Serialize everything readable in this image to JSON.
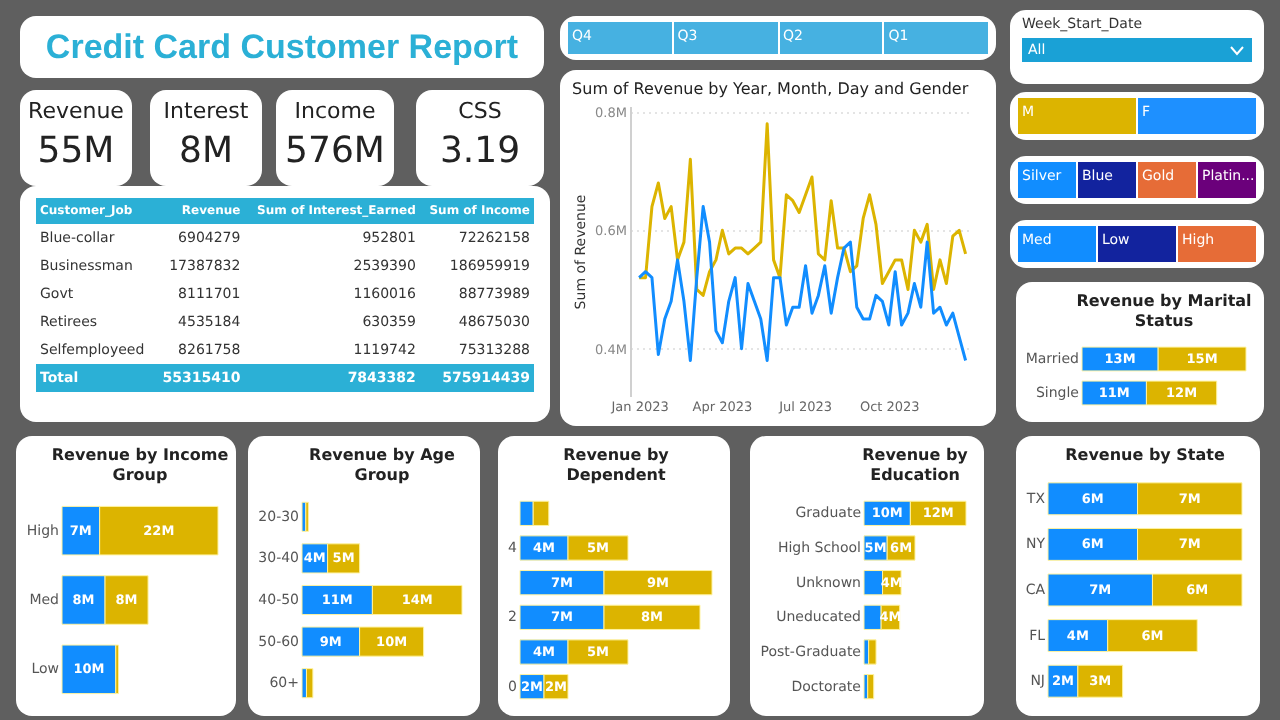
{
  "chart_data": [
    {
      "type": "other",
      "title": "Credit  Card  Customer Report"
    },
    {
      "type": "other",
      "title": "Revenue",
      "annotations": [
        "55M"
      ]
    },
    {
      "type": "other",
      "title": "Interest",
      "annotations": [
        "8M"
      ]
    },
    {
      "type": "other",
      "title": "Income",
      "annotations": [
        "576M"
      ]
    },
    {
      "type": "other",
      "title": "CSS",
      "annotations": [
        "3.19"
      ]
    },
    {
      "type": "other",
      "data_labels": true,
      "xlabel": "Customer_Job",
      "categories": [
        "Blue-collar",
        "Businessman",
        "Govt",
        "Retirees",
        "Selfemployeed"
      ],
      "series": [
        {
          "name": "Revenue",
          "values": [
            6904279,
            17387832,
            8111701,
            4535184,
            8261758
          ]
        },
        {
          "name": "Sum of Interest_Earned",
          "values": [
            952801,
            2539390,
            1160016,
            630359,
            1119742
          ]
        },
        {
          "name": "Sum of Income",
          "values": [
            72262158,
            186959919,
            88773989,
            48675030,
            75313288
          ]
        }
      ],
      "annotations": [
        "Total"
      ],
      "totals": [
        "55315410",
        "7843382",
        "575914439"
      ]
    },
    {
      "type": "other",
      "categories": [
        "Q4",
        "Q3",
        "Q2",
        "Q1"
      ],
      "colors": [
        "#46b1e1",
        "#46b1e1",
        "#46b1e1",
        "#46b1e1"
      ]
    },
    {
      "type": "line",
      "title": "Sum of Revenue by Year, Month, Day and Gender",
      "ylabel": "Sum of Revenue",
      "grid": "y",
      "x": [
        "2023-01-01",
        "2023-01-08",
        "2023-01-15",
        "2023-01-22",
        "2023-01-29",
        "2023-02-05",
        "2023-02-12",
        "2023-02-19",
        "2023-02-26",
        "2023-03-05",
        "2023-03-12",
        "2023-03-19",
        "2023-03-26",
        "2023-04-02",
        "2023-04-09",
        "2023-04-16",
        "2023-04-23",
        "2023-04-30",
        "2023-05-07",
        "2023-05-14",
        "2023-05-21",
        "2023-05-28",
        "2023-06-04",
        "2023-06-11",
        "2023-06-18",
        "2023-06-25",
        "2023-07-02",
        "2023-07-09",
        "2023-07-16",
        "2023-07-23",
        "2023-07-30",
        "2023-08-06",
        "2023-08-13",
        "2023-08-20",
        "2023-08-27",
        "2023-09-03",
        "2023-09-10",
        "2023-09-17",
        "2023-09-24",
        "2023-10-01",
        "2023-10-08",
        "2023-10-15",
        "2023-10-22",
        "2023-10-29",
        "2023-11-05",
        "2023-11-12",
        "2023-11-19",
        "2023-11-26",
        "2023-12-03",
        "2023-12-10",
        "2023-12-17",
        "2023-12-24"
      ],
      "xlim": [
        "2022-12-22",
        "2023-12-31"
      ],
      "xticks": [
        {
          "value": "2023-01-01",
          "label": "Jan 2023"
        },
        {
          "value": "2023-04-01",
          "label": "Apr 2023"
        },
        {
          "value": "2023-07-01",
          "label": "Jul 2023"
        },
        {
          "value": "2023-10-01",
          "label": "Oct 2023"
        }
      ],
      "ylim": [
        320000,
        810000
      ],
      "yticks": [
        {
          "value": 400000,
          "label": "0.4M"
        },
        {
          "value": 600000,
          "label": "0.6M"
        },
        {
          "value": 800000,
          "label": "0.8M"
        }
      ],
      "series": [
        {
          "color": "#dcb400",
          "values": [
            520000,
            520000,
            640000,
            680000,
            620000,
            640000,
            550000,
            580000,
            720000,
            500000,
            490000,
            530000,
            550000,
            600000,
            560000,
            570000,
            570000,
            560000,
            570000,
            580000,
            780000,
            550000,
            520000,
            660000,
            650000,
            630000,
            660000,
            690000,
            560000,
            550000,
            650000,
            570000,
            570000,
            530000,
            540000,
            620000,
            660000,
            610000,
            510000,
            530000,
            550000,
            550000,
            500000,
            600000,
            580000,
            610000,
            500000,
            550000,
            510000,
            590000,
            600000,
            560000
          ]
        },
        {
          "color": "#118dff",
          "values": [
            520000,
            530000,
            520000,
            390000,
            450000,
            480000,
            550000,
            480000,
            380000,
            520000,
            640000,
            580000,
            430000,
            410000,
            480000,
            520000,
            400000,
            510000,
            480000,
            450000,
            380000,
            520000,
            520000,
            440000,
            470000,
            470000,
            540000,
            460000,
            490000,
            540000,
            460000,
            520000,
            570000,
            580000,
            470000,
            450000,
            450000,
            490000,
            480000,
            440000,
            530000,
            440000,
            460000,
            510000,
            470000,
            580000,
            460000,
            470000,
            440000,
            460000,
            420000,
            380000
          ]
        }
      ]
    },
    {
      "type": "other",
      "title": "Week_Start_Date",
      "annotations": [
        "All"
      ]
    },
    {
      "type": "other",
      "categories": [
        "M",
        "F"
      ],
      "colors": [
        "#dcb400",
        "#1e90ff"
      ]
    },
    {
      "type": "other",
      "categories": [
        "Silver",
        "Blue",
        "Gold",
        "Platin..."
      ],
      "colors": [
        "#118dff",
        "#12239e",
        "#e66c37",
        "#6b007b"
      ]
    },
    {
      "type": "other",
      "categories": [
        "Med",
        "Low",
        "High"
      ],
      "colors": [
        "#118dff",
        "#12239e",
        "#e66c37"
      ]
    },
    {
      "type": "bar",
      "orientation": "horizontal",
      "stacked": true,
      "tick_labels": "y",
      "title": "Revenue by Marital Status",
      "categories": [
        "Married",
        "Single"
      ],
      "series": [
        {
          "color": "#118dff",
          "values": [
            13,
            11
          ],
          "value_labels": [
            "13M",
            "11M"
          ]
        },
        {
          "color": "#dcb400",
          "values": [
            15,
            12
          ],
          "value_labels": [
            "15M",
            "12M"
          ]
        }
      ]
    },
    {
      "type": "bar",
      "orientation": "horizontal",
      "stacked": true,
      "tick_labels": "y",
      "title": "Revenue by Income Group",
      "categories": [
        "High",
        "Med",
        "Low"
      ],
      "series": [
        {
          "color": "#118dff",
          "values": [
            7,
            8,
            10
          ],
          "value_labels": [
            "7M",
            "8M",
            "10M"
          ]
        },
        {
          "color": "#dcb400",
          "values": [
            22,
            8,
            0.5
          ],
          "value_labels": [
            "22M",
            "8M",
            null
          ]
        }
      ]
    },
    {
      "type": "bar",
      "orientation": "horizontal",
      "stacked": true,
      "tick_labels": "y",
      "title": "Revenue by Age Group",
      "categories": [
        "20-30",
        "30-40",
        "40-50",
        "50-60",
        "60+"
      ],
      "series": [
        {
          "color": "#118dff",
          "values": [
            0.6,
            4,
            11,
            9,
            0.7
          ],
          "value_labels": [
            null,
            "4M",
            "11M",
            "9M",
            null
          ]
        },
        {
          "color": "#dcb400",
          "values": [
            0.4,
            5,
            14,
            10,
            1
          ],
          "value_labels": [
            null,
            "5M",
            "14M",
            "10M",
            null
          ]
        }
      ]
    },
    {
      "type": "bar",
      "orientation": "horizontal",
      "stacked": true,
      "tick_labels": "y",
      "title": "Revenue by Dependent",
      "categories": [
        null,
        "4",
        null,
        "2",
        null,
        "0"
      ],
      "series": [
        {
          "color": "#118dff",
          "values": [
            1.1,
            4,
            7,
            7,
            4,
            2
          ],
          "value_labels": [
            null,
            "4M",
            "7M",
            "7M",
            "4M",
            "2M"
          ]
        },
        {
          "color": "#dcb400",
          "values": [
            1.3,
            5,
            9,
            8,
            5,
            2
          ],
          "value_labels": [
            null,
            "5M",
            "9M",
            "8M",
            "5M",
            "2M"
          ]
        }
      ]
    },
    {
      "type": "bar",
      "orientation": "horizontal",
      "stacked": true,
      "tick_labels": "y",
      "title": "Revenue by Education",
      "categories": [
        "Graduate",
        "High School",
        "Unknown",
        "Uneducated",
        "Post-Graduate",
        "Doctorate"
      ],
      "series": [
        {
          "color": "#118dff",
          "values": [
            10,
            5,
            4,
            3.7,
            1,
            0.8
          ],
          "value_labels": [
            "10M",
            "5M",
            null,
            null,
            null,
            null
          ]
        },
        {
          "color": "#dcb400",
          "values": [
            12,
            6,
            4,
            4,
            1.6,
            1.3
          ],
          "value_labels": [
            "12M",
            "6M",
            "4M",
            "4M",
            null,
            null
          ]
        }
      ]
    },
    {
      "type": "bar",
      "orientation": "horizontal",
      "stacked": true,
      "tick_labels": "y",
      "title": "Revenue by State",
      "categories": [
        "TX",
        "NY",
        "CA",
        "FL",
        "NJ"
      ],
      "series": [
        {
          "color": "#118dff",
          "values": [
            6,
            6,
            7,
            4,
            2
          ],
          "value_labels": [
            "6M",
            "6M",
            "7M",
            "4M",
            "2M"
          ]
        },
        {
          "color": "#dcb400",
          "values": [
            7,
            7,
            6,
            6,
            3
          ],
          "value_labels": [
            "7M",
            "7M",
            "6M",
            "6M",
            "3M"
          ]
        }
      ]
    }
  ]
}
